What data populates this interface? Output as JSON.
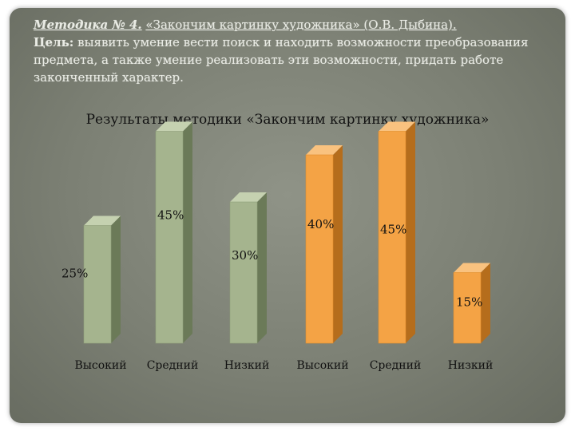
{
  "header": {
    "method_label": "Методика № 4.",
    "method_name": "«Закончим картинку художника» (О.В. Дыбина).",
    "goal_label": "Цель:",
    "goal_text": "выявить умение вести поиск и находить возможности преобразования предмета, а также умение реализовать эти возможности, придать работе законченный характер."
  },
  "colors": {
    "green_front": "#a5b48e",
    "green_side": "#6b7a58",
    "green_top": "#c5d1b0",
    "orange_front": "#f4a345",
    "orange_side": "#b56d1c",
    "orange_top": "#f9c27f"
  },
  "chart_data": {
    "type": "bar",
    "title": "Результаты методики «Закончим картинку художника»",
    "categories": [
      "Высокий",
      "Средний",
      "Низкий",
      "Высокий",
      "Средний",
      "Низкий"
    ],
    "groups": [
      {
        "color": "green",
        "values": [
          25,
          45,
          30
        ]
      },
      {
        "color": "orange",
        "values": [
          40,
          45,
          15
        ]
      }
    ],
    "values": [
      25,
      45,
      30,
      40,
      45,
      15
    ],
    "value_labels": [
      "25%",
      "45%",
      "30%",
      "40%",
      "45%",
      "15%"
    ],
    "ylim": [
      0,
      50
    ],
    "grid": false,
    "legend": "none"
  }
}
